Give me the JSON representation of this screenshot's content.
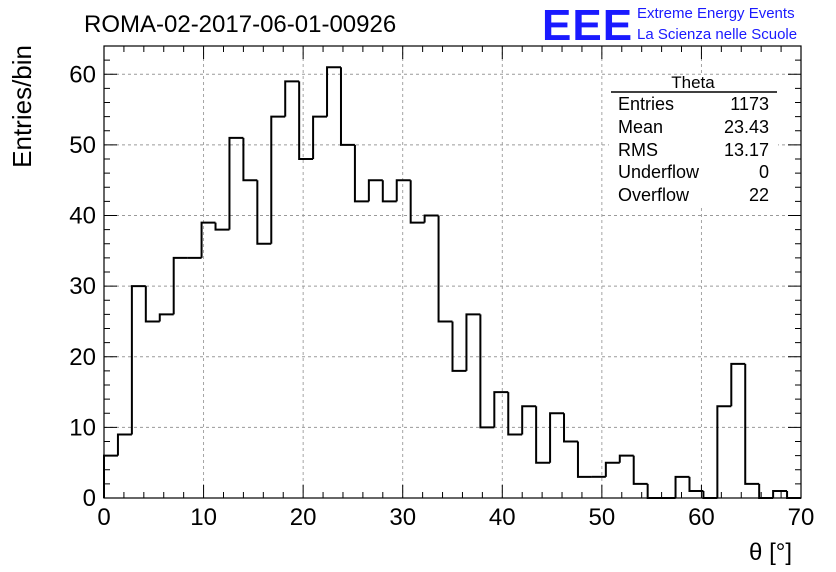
{
  "header": {
    "run_title": "ROMA-02-2017-06-01-00926",
    "logo_letters": "EEE",
    "logo_line1": "Extreme Energy Events",
    "logo_line2": "La Scienza nelle Scuole",
    "logo_color": "#1a1aff"
  },
  "stats": {
    "title": "Theta",
    "rows": [
      {
        "label": "Entries",
        "value": "1173"
      },
      {
        "label": "Mean",
        "value": "23.43"
      },
      {
        "label": "RMS",
        "value": "13.17"
      },
      {
        "label": "Underflow",
        "value": "0"
      },
      {
        "label": "Overflow",
        "value": "22"
      }
    ]
  },
  "chart_data": {
    "type": "bar",
    "histogram": true,
    "title": "ROMA-02-2017-06-01-00926",
    "xlabel": "θ [°]",
    "ylabel": "Entries/bin",
    "xlim": [
      0,
      70
    ],
    "ylim": [
      0,
      64
    ],
    "grid": true,
    "bin_width": 1.4,
    "bin_edges_start": 0,
    "values": [
      6,
      9,
      30,
      25,
      26,
      34,
      34,
      39,
      38,
      51,
      45,
      36,
      54,
      59,
      48,
      54,
      61,
      50,
      42,
      45,
      42,
      45,
      39,
      40,
      25,
      18,
      26,
      10,
      15,
      9,
      13,
      5,
      12,
      8,
      3,
      3,
      5,
      6,
      2,
      0,
      0,
      3,
      1,
      0,
      13,
      19,
      2,
      0,
      1,
      0
    ],
    "x_ticks": [
      "0",
      "10",
      "20",
      "30",
      "40",
      "50",
      "60",
      "70"
    ],
    "y_ticks": [
      "0",
      "10",
      "20",
      "30",
      "40",
      "50",
      "60"
    ],
    "line_color": "#000000"
  }
}
